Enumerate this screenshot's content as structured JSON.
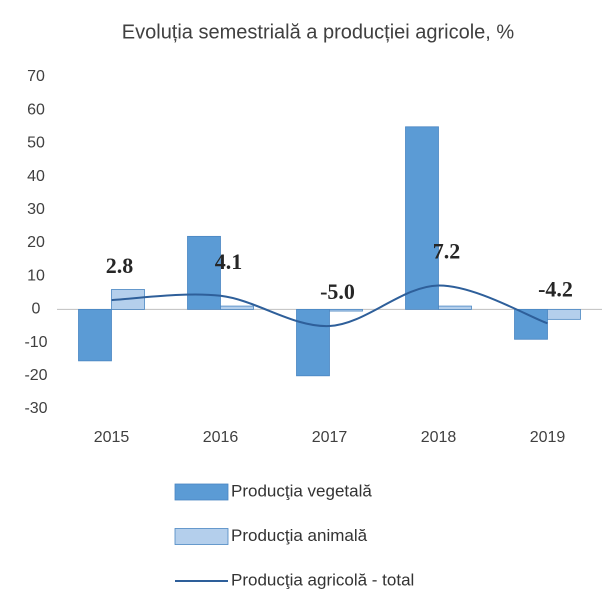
{
  "chart_data": {
    "type": "bar_line",
    "title": "Evoluția semestrială a producției agricole, %",
    "categories": [
      "2015",
      "2016",
      "2017",
      "2018",
      "2019"
    ],
    "series": [
      {
        "name": "Producţia vegetală",
        "type": "bar",
        "color": "#5b9bd5",
        "values": [
          -15.5,
          22,
          -20,
          55,
          -9
        ]
      },
      {
        "name": "Producţia animală",
        "type": "bar",
        "color": "#b4cfec",
        "values": [
          6,
          1,
          -0.5,
          1,
          -3
        ]
      },
      {
        "name": "Producţia agricolă - total",
        "type": "line",
        "color": "#2e5f9a",
        "values": [
          2.8,
          4.1,
          -5.0,
          7.2,
          -4.2
        ],
        "value_labels": [
          "2.8",
          "4.1",
          "-5.0",
          "7.2",
          "-4.2"
        ]
      }
    ],
    "ylim": [
      -30,
      70
    ],
    "yticks": [
      -30,
      -20,
      -10,
      0,
      10,
      20,
      30,
      40,
      50,
      60,
      70
    ],
    "grid": false
  }
}
